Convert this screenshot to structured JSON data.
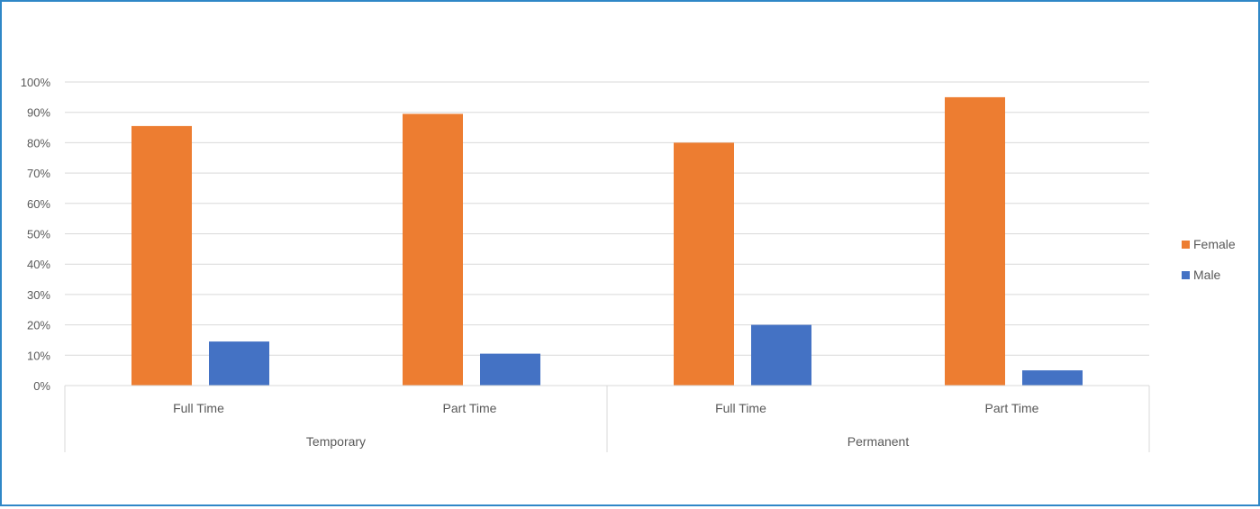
{
  "colors": {
    "border": "#2f87c7",
    "female": "#ed7d31",
    "male": "#4472c4",
    "grid": "#d9d9d9",
    "text": "#595959"
  },
  "chart_data": {
    "type": "bar",
    "title": "",
    "xlabel": "",
    "ylabel": "",
    "ylim": [
      0,
      1
    ],
    "y_ticks": [
      "0%",
      "10%",
      "20%",
      "30%",
      "40%",
      "50%",
      "60%",
      "70%",
      "80%",
      "90%",
      "100%"
    ],
    "y_tick_values": [
      0,
      0.1,
      0.2,
      0.3,
      0.4,
      0.5,
      0.6,
      0.7,
      0.8,
      0.9,
      1.0
    ],
    "groups": [
      {
        "label": "Temporary",
        "categories": [
          "Full Time",
          "Part Time"
        ]
      },
      {
        "label": "Permanent",
        "categories": [
          "Full Time",
          "Part Time"
        ]
      }
    ],
    "categories": [
      "Full Time",
      "Part Time",
      "Full Time",
      "Part Time"
    ],
    "series": [
      {
        "name": "Female",
        "color": "#ed7d31",
        "values": [
          0.855,
          0.895,
          0.8,
          0.95
        ]
      },
      {
        "name": "Male",
        "color": "#4472c4",
        "values": [
          0.145,
          0.105,
          0.2,
          0.05
        ]
      }
    ],
    "legend": "right",
    "grid": true
  }
}
